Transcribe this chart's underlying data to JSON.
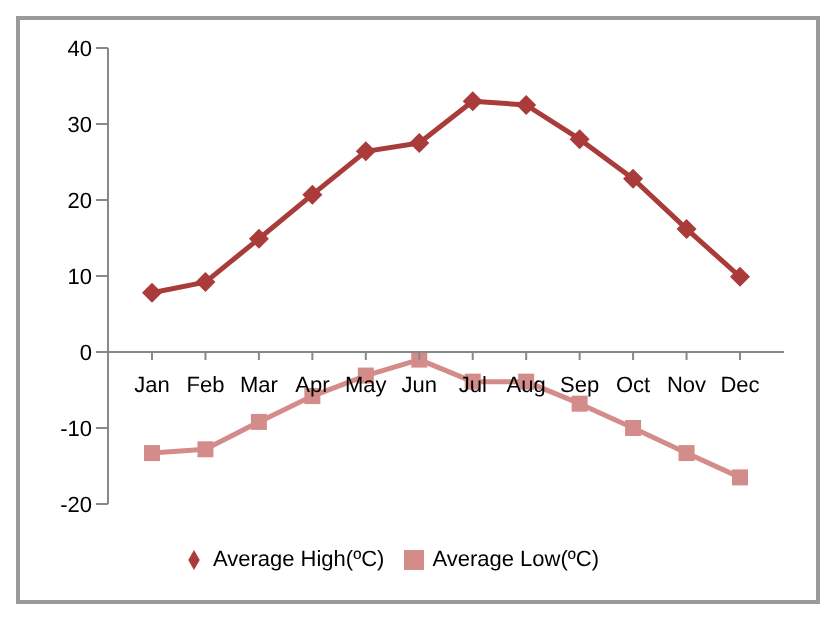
{
  "chart_data": {
    "type": "line",
    "categories": [
      "Jan",
      "Feb",
      "Mar",
      "Apr",
      "May",
      "Jun",
      "Jul",
      "Aug",
      "Sep",
      "Oct",
      "Nov",
      "Dec"
    ],
    "series": [
      {
        "name": "Average High(ºC)",
        "color": "#a93c3a",
        "marker": "diamond",
        "values": [
          7.8,
          9.2,
          14.9,
          20.7,
          26.4,
          27.5,
          33,
          32.5,
          28,
          22.8,
          16.2,
          9.9
        ]
      },
      {
        "name": "Average Low(ºC)",
        "color": "#d48c8a",
        "marker": "square",
        "values": [
          -13.3,
          -12.8,
          -9.2,
          -5.8,
          -3.1,
          -1,
          -3.9,
          -3.9,
          -6.8,
          -10,
          -13.3,
          -16.5
        ]
      }
    ],
    "ylim": [
      -20,
      40
    ],
    "yticks": [
      -20,
      -10,
      0,
      10,
      20,
      30,
      40
    ],
    "legend": "bottom"
  }
}
